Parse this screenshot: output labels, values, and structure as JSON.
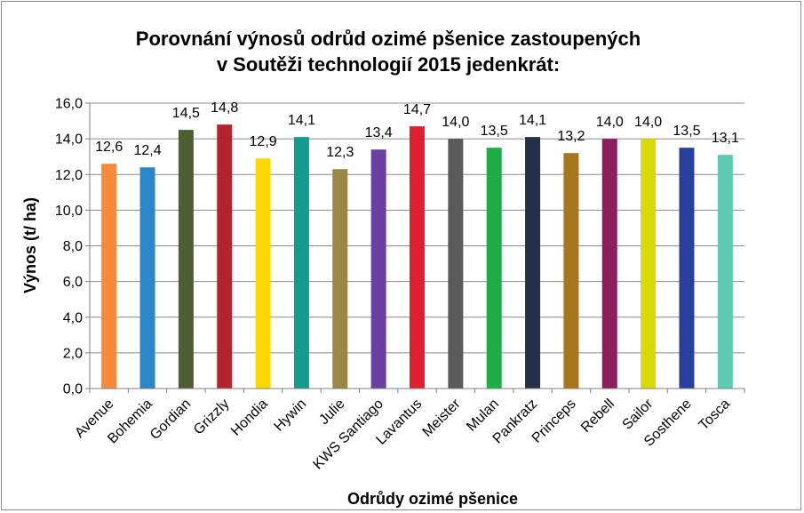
{
  "chart_data": {
    "type": "bar",
    "title_lines": [
      "Porovnání výnosů odrůd ozimé pšenice zastoupených",
      "v Soutěži technologií 2015 jedenkrát:"
    ],
    "xlabel": "Odrůdy ozimé pšenice",
    "ylabel": "Výnos (t/ ha)",
    "ylim": [
      0,
      16
    ],
    "yticks": [
      "0,0",
      "2,0",
      "4,0",
      "6,0",
      "8,0",
      "10,0",
      "12,0",
      "14,0",
      "16,0"
    ],
    "categories": [
      "Avenue",
      "Bohemia",
      "Gordian",
      "Grizzly",
      "Hondia",
      "Hywin",
      "Julie",
      "KWS Santiago",
      "Lavantus",
      "Meister",
      "Mulan",
      "Pankratz",
      "Princeps",
      "Rebell",
      "Sailor",
      "Sosthene",
      "Tosca"
    ],
    "values": [
      12.6,
      12.4,
      14.5,
      14.8,
      12.9,
      14.1,
      12.3,
      13.4,
      14.7,
      14.0,
      13.5,
      14.1,
      13.2,
      14.0,
      14.0,
      13.5,
      13.1
    ],
    "value_labels": [
      "12,6",
      "12,4",
      "14,5",
      "14,8",
      "12,9",
      "14,1",
      "12,3",
      "13,4",
      "14,7",
      "14,0",
      "13,5",
      "14,1",
      "13,2",
      "14,0",
      "14,0",
      "13,5",
      "13,1"
    ],
    "colors": [
      "#f58a3c",
      "#2d86c7",
      "#4d5e33",
      "#b3252e",
      "#fdd800",
      "#149c8e",
      "#9a8745",
      "#6a40a3",
      "#df2032",
      "#5a5a5a",
      "#1fae46",
      "#243047",
      "#a8741c",
      "#8b1e5c",
      "#d9d90a",
      "#283f9c",
      "#5dcbb0"
    ],
    "grid": true,
    "legend": "none"
  }
}
